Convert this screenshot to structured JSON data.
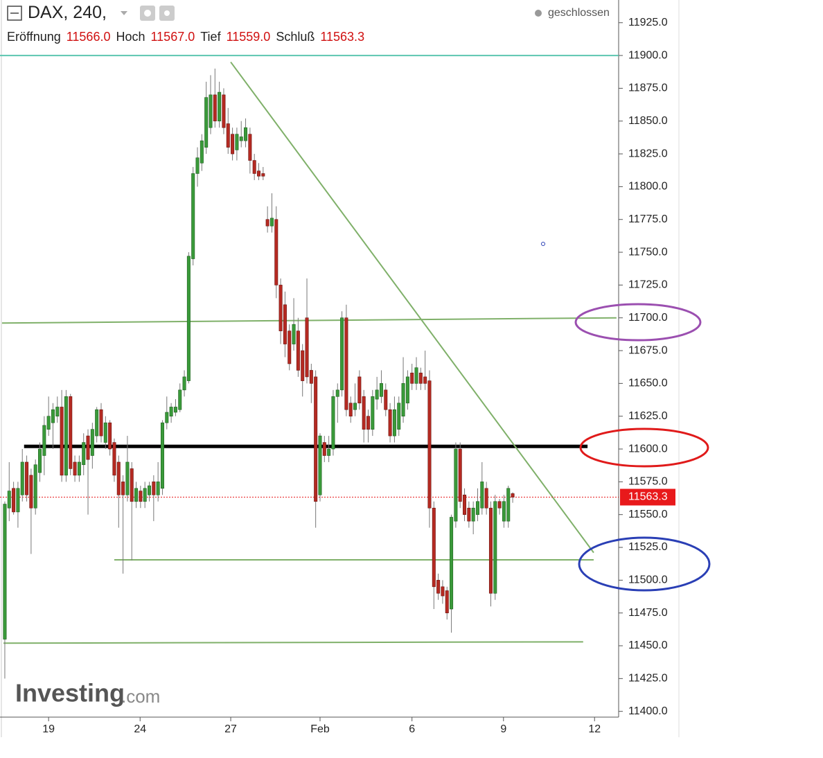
{
  "chart_data": {
    "type": "candlestick",
    "header": {
      "title": "DAX, 240,",
      "status": "geschlossen",
      "fields": [
        {
          "label": "Eröffnung",
          "value": "11566.0"
        },
        {
          "label": "Hoch",
          "value": "11567.0"
        },
        {
          "label": "Tief",
          "value": "11559.0"
        },
        {
          "label": "Schluß",
          "value": "11563.3"
        }
      ]
    },
    "logo": {
      "name": "Investing",
      "suffix": ".com"
    },
    "up_color": "#3a9a3a",
    "down_color": "#b52a22",
    "last_price": 11563.3,
    "last_price_color": "#e8191b",
    "xlim": [
      -1.1,
      140.2
    ],
    "xticks": [
      {
        "value": 10,
        "label": "19"
      },
      {
        "value": 30.9,
        "label": "24"
      },
      {
        "value": 51.6,
        "label": "27"
      },
      {
        "value": 72,
        "label": "Feb"
      },
      {
        "value": 93,
        "label": "6"
      },
      {
        "value": 113.9,
        "label": "9"
      },
      {
        "value": 134.7,
        "label": "12"
      }
    ],
    "ylim": [
      11395.6,
      11942.3
    ],
    "yticks": [
      {
        "value": 11400,
        "label": "11400.0"
      },
      {
        "value": 11425,
        "label": "11425.0"
      },
      {
        "value": 11450,
        "label": "11450.0"
      },
      {
        "value": 11475,
        "label": "11475.0"
      },
      {
        "value": 11500,
        "label": "11500.0"
      },
      {
        "value": 11525,
        "label": "11525.0"
      },
      {
        "value": 11550,
        "label": "11550.0"
      },
      {
        "value": 11575,
        "label": "11575.0"
      },
      {
        "value": 11600,
        "label": "11600.0"
      },
      {
        "value": 11625,
        "label": "11625.0"
      },
      {
        "value": 11650,
        "label": "11650.0"
      },
      {
        "value": 11675,
        "label": "11675.0"
      },
      {
        "value": 11700,
        "label": "11700.0"
      },
      {
        "value": 11725,
        "label": "11725.0"
      },
      {
        "value": 11750,
        "label": "11750.0"
      },
      {
        "value": 11775,
        "label": "11775.0"
      },
      {
        "value": 11800,
        "label": "11800.0"
      },
      {
        "value": 11825,
        "label": "11825.0"
      },
      {
        "value": 11850,
        "label": "11850.0"
      },
      {
        "value": 11875,
        "label": "11875.0"
      },
      {
        "value": 11900,
        "label": "11900.0"
      },
      {
        "value": 11925,
        "label": "11925.0"
      }
    ],
    "drawings": [
      {
        "color": "#5cc6b0",
        "points": [
          [
            -1.1,
            11900
          ],
          [
            140.2,
            11900
          ]
        ]
      },
      {
        "color": "#7fb069",
        "points": [
          [
            -0.63,
            11696
          ],
          [
            139.7,
            11700
          ]
        ]
      },
      {
        "color": "#000000",
        "points": [
          [
            4.4,
            11602
          ],
          [
            133.1,
            11602
          ]
        ]
      },
      {
        "color": "#7fb069",
        "points": [
          [
            25,
            11515.5
          ],
          [
            134.5,
            11515.5
          ]
        ]
      },
      {
        "color": "#7fb069",
        "points": [
          [
            -0.3,
            11452
          ],
          [
            132.1,
            11453
          ]
        ]
      },
      {
        "color": "#7fb069",
        "points": [
          [
            51.6,
            11895
          ],
          [
            134.5,
            11521
          ]
        ]
      }
    ],
    "candles": [
      {
        "open": 11455,
        "high": 11560,
        "low": 11425,
        "close": 11558
      },
      {
        "open": 11555,
        "high": 11590,
        "low": 11545,
        "close": 11568
      },
      {
        "open": 11570,
        "high": 11575,
        "low": 11550,
        "close": 11552
      },
      {
        "open": 11552,
        "high": 11575,
        "low": 11540,
        "close": 11570
      },
      {
        "open": 11565,
        "high": 11600,
        "low": 11560,
        "close": 11590
      },
      {
        "open": 11590,
        "high": 11595,
        "low": 11560,
        "close": 11565
      },
      {
        "open": 11580,
        "high": 11585,
        "low": 11520,
        "close": 11555
      },
      {
        "open": 11555,
        "high": 11592,
        "low": 11550,
        "close": 11588
      },
      {
        "open": 11582,
        "high": 11605,
        "low": 11575,
        "close": 11600
      },
      {
        "open": 11595,
        "high": 11625,
        "low": 11580,
        "close": 11618
      },
      {
        "open": 11615,
        "high": 11640,
        "low": 11610,
        "close": 11625
      },
      {
        "open": 11620,
        "high": 11635,
        "low": 11600,
        "close": 11630
      },
      {
        "open": 11625,
        "high": 11640,
        "low": 11620,
        "close": 11632
      },
      {
        "open": 11632,
        "high": 11645,
        "low": 11575,
        "close": 11580
      },
      {
        "open": 11580,
        "high": 11645,
        "low": 11575,
        "close": 11640
      },
      {
        "open": 11640,
        "high": 11642,
        "low": 11580,
        "close": 11585
      },
      {
        "open": 11590,
        "high": 11595,
        "low": 11575,
        "close": 11580
      },
      {
        "open": 11580,
        "high": 11595,
        "low": 11575,
        "close": 11590
      },
      {
        "open": 11588,
        "high": 11612,
        "low": 11580,
        "close": 11605
      },
      {
        "open": 11610,
        "high": 11615,
        "low": 11550,
        "close": 11592
      },
      {
        "open": 11595,
        "high": 11620,
        "low": 11585,
        "close": 11615
      },
      {
        "open": 11610,
        "high": 11632,
        "low": 11605,
        "close": 11630
      },
      {
        "open": 11630,
        "high": 11635,
        "low": 11605,
        "close": 11610
      },
      {
        "open": 11605,
        "high": 11625,
        "low": 11600,
        "close": 11620
      },
      {
        "open": 11620,
        "high": 11622,
        "low": 11595,
        "close": 11600
      },
      {
        "open": 11605,
        "high": 11608,
        "low": 11575,
        "close": 11580
      },
      {
        "open": 11590,
        "high": 11595,
        "low": 11540,
        "close": 11565
      },
      {
        "open": 11575,
        "high": 11580,
        "low": 11505,
        "close": 11565
      },
      {
        "open": 11565,
        "high": 11610,
        "low": 11560,
        "close": 11590
      },
      {
        "open": 11585,
        "high": 11590,
        "low": 11515,
        "close": 11560
      },
      {
        "open": 11560,
        "high": 11575,
        "low": 11555,
        "close": 11570
      },
      {
        "open": 11568,
        "high": 11572,
        "low": 11555,
        "close": 11560
      },
      {
        "open": 11560,
        "high": 11575,
        "low": 11555,
        "close": 11570
      },
      {
        "open": 11565,
        "high": 11575,
        "low": 11560,
        "close": 11572
      },
      {
        "open": 11575,
        "high": 11580,
        "low": 11545,
        "close": 11565
      },
      {
        "open": 11565,
        "high": 11590,
        "low": 11560,
        "close": 11575
      },
      {
        "open": 11570,
        "high": 11622,
        "low": 11565,
        "close": 11620
      },
      {
        "open": 11620,
        "high": 11640,
        "low": 11615,
        "close": 11628
      },
      {
        "open": 11625,
        "high": 11635,
        "low": 11620,
        "close": 11632
      },
      {
        "open": 11628,
        "high": 11638,
        "low": 11625,
        "close": 11632
      },
      {
        "open": 11630,
        "high": 11650,
        "low": 11628,
        "close": 11645
      },
      {
        "open": 11645,
        "high": 11660,
        "low": 11640,
        "close": 11655
      },
      {
        "open": 11652,
        "high": 11750,
        "low": 11650,
        "close": 11747
      },
      {
        "open": 11745,
        "high": 11815,
        "low": 11740,
        "close": 11810
      },
      {
        "open": 11810,
        "high": 11830,
        "low": 11800,
        "close": 11822
      },
      {
        "open": 11818,
        "high": 11840,
        "low": 11812,
        "close": 11835
      },
      {
        "open": 11830,
        "high": 11880,
        "low": 11825,
        "close": 11868
      },
      {
        "open": 11845,
        "high": 11885,
        "low": 11840,
        "close": 11870
      },
      {
        "open": 11870,
        "high": 11890,
        "low": 11845,
        "close": 11850
      },
      {
        "open": 11850,
        "high": 11880,
        "low": 11845,
        "close": 11872
      },
      {
        "open": 11870,
        "high": 11875,
        "low": 11840,
        "close": 11845
      },
      {
        "open": 11848,
        "high": 11860,
        "low": 11825,
        "close": 11830
      },
      {
        "open": 11840,
        "high": 11845,
        "low": 11820,
        "close": 11825
      },
      {
        "open": 11828,
        "high": 11845,
        "low": 11820,
        "close": 11840
      },
      {
        "open": 11835,
        "high": 11850,
        "low": 11830,
        "close": 11838
      },
      {
        "open": 11835,
        "high": 11852,
        "low": 11830,
        "close": 11845
      },
      {
        "open": 11840,
        "high": 11845,
        "low": 11810,
        "close": 11820
      },
      {
        "open": 11820,
        "high": 11825,
        "low": 11805,
        "close": 11810
      },
      {
        "open": 11812,
        "high": 11818,
        "low": 11805,
        "close": 11808
      },
      {
        "open": 11810,
        "high": 11815,
        "low": 11805,
        "close": 11808
      },
      {
        "open": 11775,
        "high": 11785,
        "low": 11765,
        "close": 11770
      },
      {
        "open": 11770,
        "high": 11795,
        "low": 11765,
        "close": 11776
      },
      {
        "open": 11775,
        "high": 11785,
        "low": 11715,
        "close": 11725
      },
      {
        "open": 11725,
        "high": 11730,
        "low": 11680,
        "close": 11690
      },
      {
        "open": 11710,
        "high": 11720,
        "low": 11670,
        "close": 11680
      },
      {
        "open": 11690,
        "high": 11695,
        "low": 11660,
        "close": 11665
      },
      {
        "open": 11680,
        "high": 11715,
        "low": 11675,
        "close": 11695
      },
      {
        "open": 11690,
        "high": 11700,
        "low": 11655,
        "close": 11660
      },
      {
        "open": 11675,
        "high": 11680,
        "low": 11640,
        "close": 11652
      },
      {
        "open": 11700,
        "high": 11730,
        "low": 11650,
        "close": 11655
      },
      {
        "open": 11660,
        "high": 11665,
        "low": 11635,
        "close": 11650
      },
      {
        "open": 11655,
        "high": 11660,
        "low": 11540,
        "close": 11560
      },
      {
        "open": 11565,
        "high": 11612,
        "low": 11560,
        "close": 11610
      },
      {
        "open": 11605,
        "high": 11610,
        "low": 11590,
        "close": 11595
      },
      {
        "open": 11595,
        "high": 11610,
        "low": 11590,
        "close": 11600
      },
      {
        "open": 11600,
        "high": 11645,
        "low": 11595,
        "close": 11640
      },
      {
        "open": 11640,
        "high": 11650,
        "low": 11620,
        "close": 11645
      },
      {
        "open": 11645,
        "high": 11705,
        "low": 11640,
        "close": 11700
      },
      {
        "open": 11700,
        "high": 11710,
        "low": 11625,
        "close": 11630
      },
      {
        "open": 11635,
        "high": 11640,
        "low": 11620,
        "close": 11625
      },
      {
        "open": 11630,
        "high": 11650,
        "low": 11625,
        "close": 11635
      },
      {
        "open": 11655,
        "high": 11660,
        "low": 11630,
        "close": 11635
      },
      {
        "open": 11640,
        "high": 11645,
        "low": 11605,
        "close": 11615
      },
      {
        "open": 11625,
        "high": 11630,
        "low": 11605,
        "close": 11615
      },
      {
        "open": 11615,
        "high": 11645,
        "low": 11610,
        "close": 11640
      },
      {
        "open": 11638,
        "high": 11655,
        "low": 11630,
        "close": 11645
      },
      {
        "open": 11640,
        "high": 11660,
        "low": 11635,
        "close": 11650
      },
      {
        "open": 11645,
        "high": 11650,
        "low": 11625,
        "close": 11630
      },
      {
        "open": 11630,
        "high": 11635,
        "low": 11605,
        "close": 11610
      },
      {
        "open": 11610,
        "high": 11640,
        "low": 11605,
        "close": 11630
      },
      {
        "open": 11615,
        "high": 11640,
        "low": 11610,
        "close": 11635
      },
      {
        "open": 11625,
        "high": 11670,
        "low": 11620,
        "close": 11650
      },
      {
        "open": 11635,
        "high": 11660,
        "low": 11630,
        "close": 11655
      },
      {
        "open": 11658,
        "high": 11665,
        "low": 11645,
        "close": 11650
      },
      {
        "open": 11650,
        "high": 11670,
        "low": 11645,
        "close": 11662
      },
      {
        "open": 11658,
        "high": 11662,
        "low": 11645,
        "close": 11650
      },
      {
        "open": 11655,
        "high": 11675,
        "low": 11645,
        "close": 11650
      },
      {
        "open": 11652,
        "high": 11660,
        "low": 11540,
        "close": 11555
      },
      {
        "open": 11555,
        "high": 11560,
        "low": 11478,
        "close": 11495
      },
      {
        "open": 11500,
        "high": 11505,
        "low": 11485,
        "close": 11490
      },
      {
        "open": 11495,
        "high": 11500,
        "low": 11482,
        "close": 11488
      },
      {
        "open": 11492,
        "high": 11495,
        "low": 11470,
        "close": 11475
      },
      {
        "open": 11478,
        "high": 11550,
        "low": 11460,
        "close": 11548
      },
      {
        "open": 11545,
        "high": 11605,
        "low": 11540,
        "close": 11600
      },
      {
        "open": 11600,
        "high": 11605,
        "low": 11555,
        "close": 11560
      },
      {
        "open": 11565,
        "high": 11570,
        "low": 11545,
        "close": 11550
      },
      {
        "open": 11555,
        "high": 11560,
        "low": 11540,
        "close": 11545
      },
      {
        "open": 11545,
        "high": 11560,
        "low": 11535,
        "close": 11555
      },
      {
        "open": 11550,
        "high": 11570,
        "low": 11545,
        "close": 11560
      },
      {
        "open": 11555,
        "high": 11590,
        "low": 11550,
        "close": 11575
      },
      {
        "open": 11570,
        "high": 11575,
        "low": 11550,
        "close": 11555
      },
      {
        "open": 11555,
        "high": 11560,
        "low": 11480,
        "close": 11490
      },
      {
        "open": 11490,
        "high": 11565,
        "low": 11485,
        "close": 11560
      },
      {
        "open": 11560,
        "high": 11562,
        "low": 11550,
        "close": 11555
      },
      {
        "open": 11545,
        "high": 11565,
        "low": 11540,
        "close": 11560
      },
      {
        "open": 11545,
        "high": 11572,
        "low": 11540,
        "close": 11570
      },
      {
        "open": 11566,
        "high": 11567,
        "low": 11559,
        "close": 11563.3
      }
    ]
  }
}
